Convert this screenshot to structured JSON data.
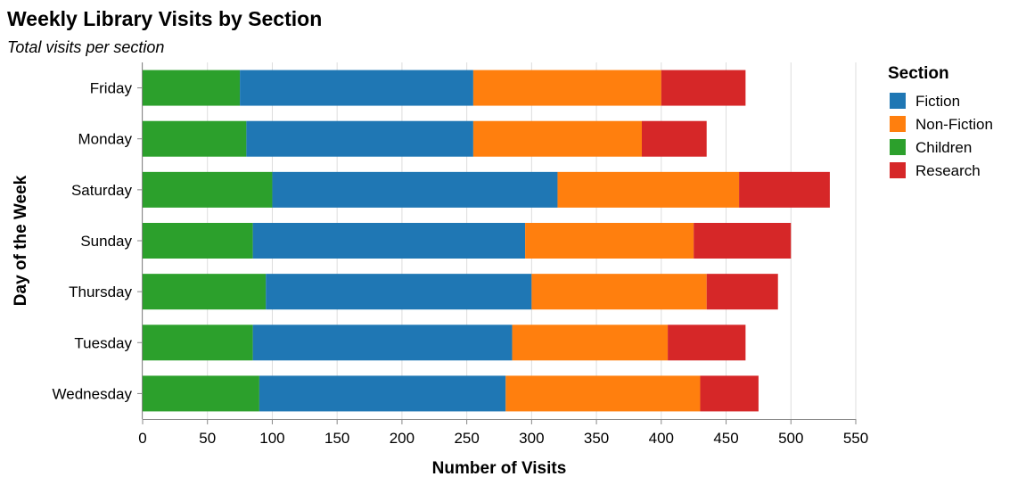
{
  "chart_data": {
    "type": "bar",
    "orientation": "horizontal",
    "stacked": true,
    "title": "Weekly Library Visits by Section",
    "subtitle": "Total visits per section",
    "xlabel": "Number of Visits",
    "ylabel": "Day of the Week",
    "xlim": [
      0,
      550
    ],
    "xticks": [
      0,
      50,
      100,
      150,
      200,
      250,
      300,
      350,
      400,
      450,
      500,
      550
    ],
    "grid": true,
    "legend_title": "Section",
    "legend_position": "right",
    "categories": [
      "Friday",
      "Monday",
      "Saturday",
      "Sunday",
      "Thursday",
      "Tuesday",
      "Wednesday"
    ],
    "stack_order": [
      "Children",
      "Fiction",
      "Non-Fiction",
      "Research"
    ],
    "series": [
      {
        "name": "Fiction",
        "color": "#1f77b4",
        "values": [
          180,
          175,
          220,
          210,
          205,
          200,
          190
        ]
      },
      {
        "name": "Non-Fiction",
        "color": "#ff7f0e",
        "values": [
          145,
          130,
          140,
          130,
          135,
          120,
          150
        ]
      },
      {
        "name": "Children",
        "color": "#2ca02c",
        "values": [
          75,
          80,
          100,
          85,
          95,
          85,
          90
        ]
      },
      {
        "name": "Research",
        "color": "#d62728",
        "values": [
          65,
          50,
          70,
          75,
          55,
          60,
          45
        ]
      }
    ]
  }
}
